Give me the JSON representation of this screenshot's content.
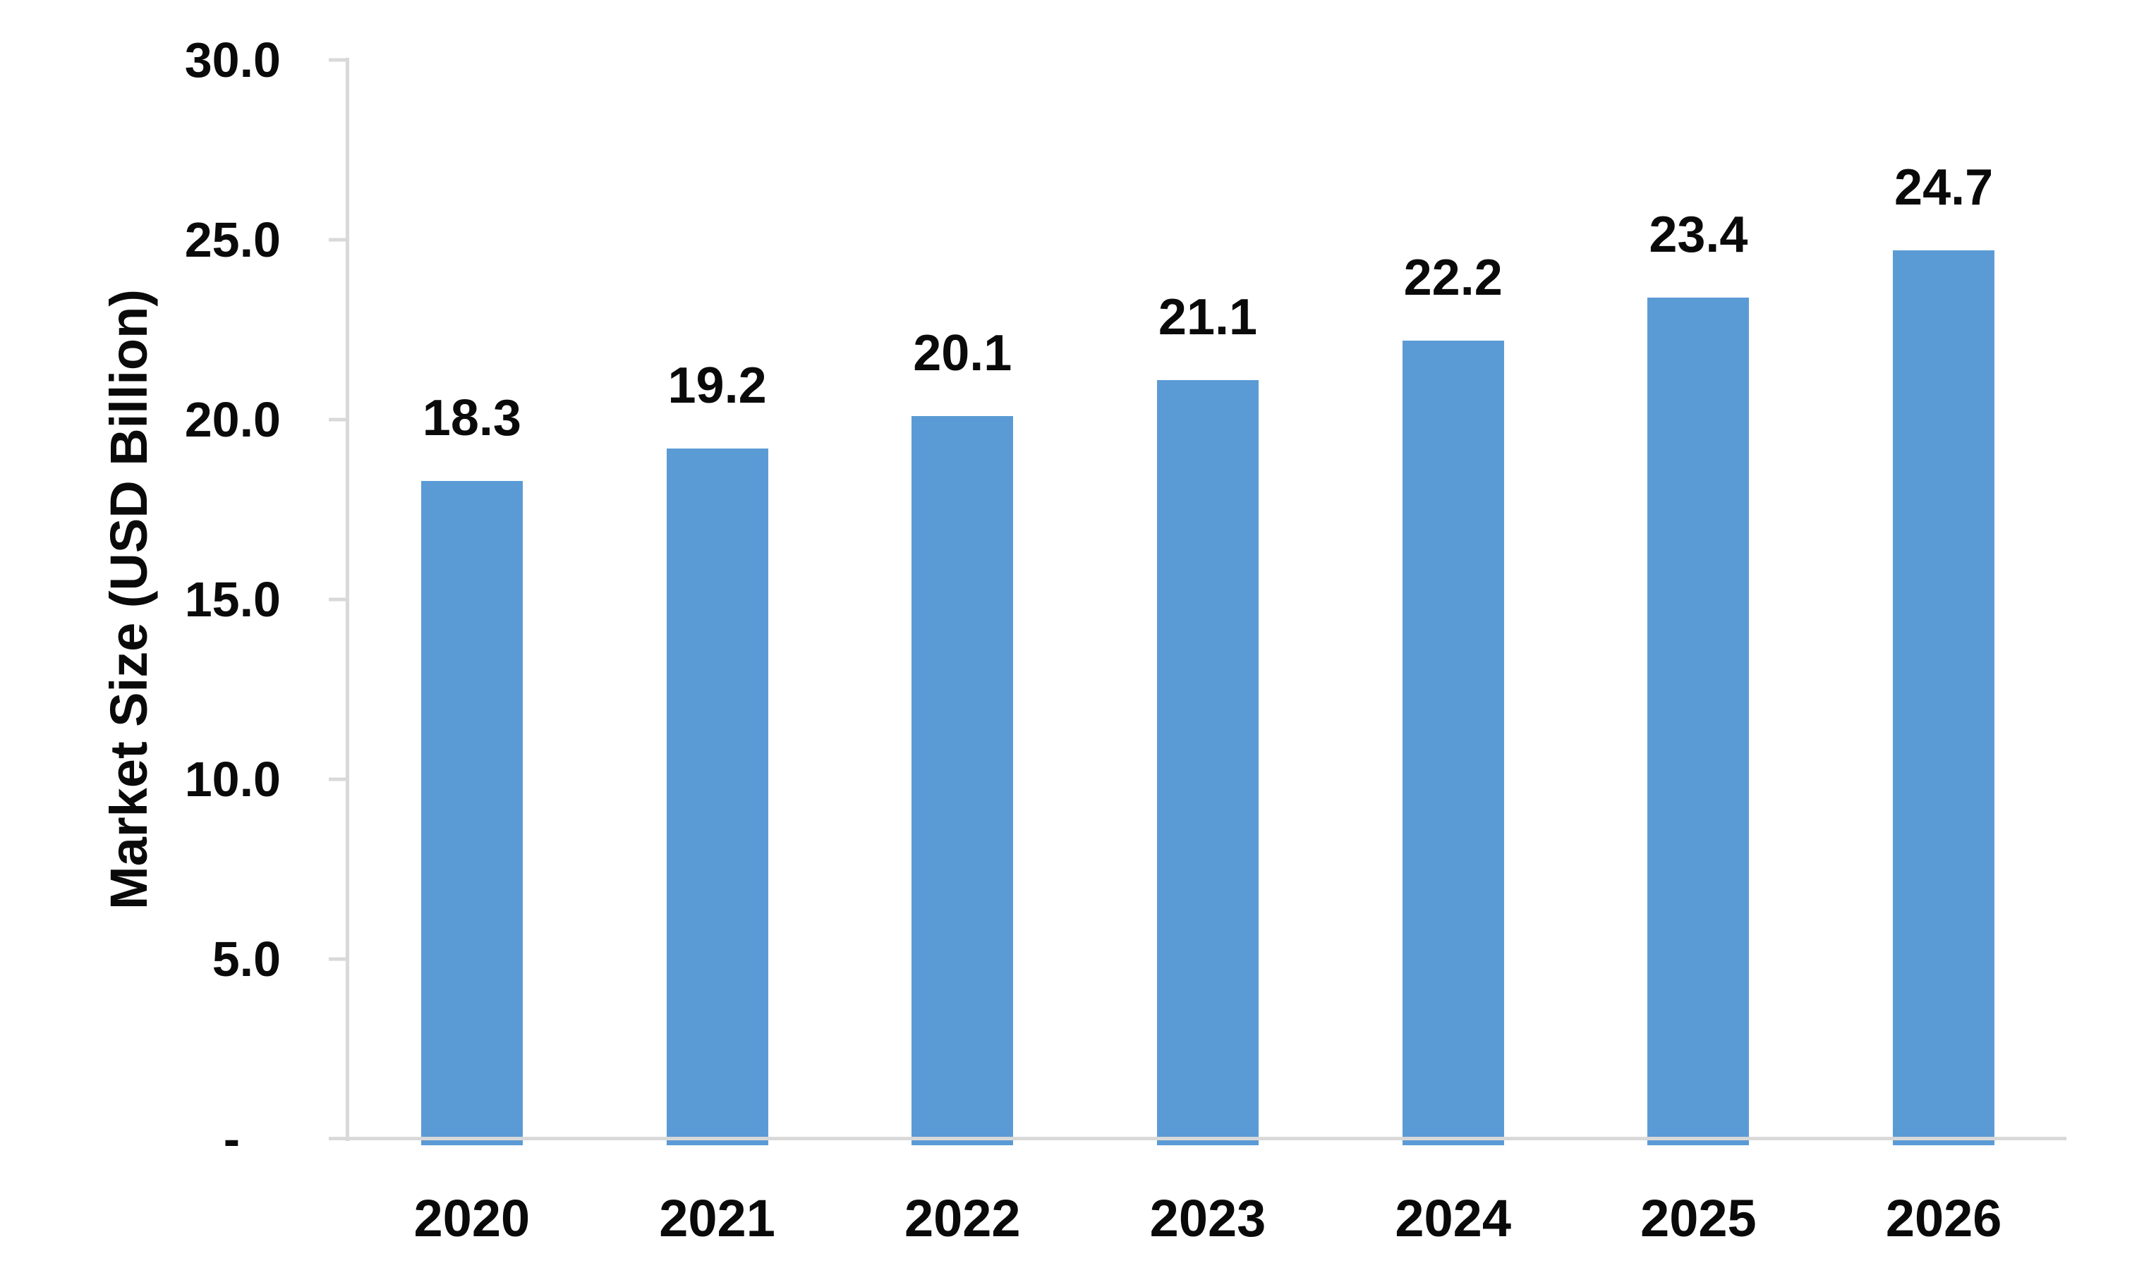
{
  "chart_data": {
    "type": "bar",
    "title": "",
    "xlabel": "",
    "ylabel": "Market Size (USD Billion)",
    "categories": [
      "2020",
      "2021",
      "2022",
      "2023",
      "2024",
      "2025",
      "2026"
    ],
    "values": [
      18.3,
      19.2,
      20.1,
      21.1,
      22.2,
      23.4,
      24.7
    ],
    "value_label_format": "one-decimal",
    "ylim": [
      0,
      30
    ],
    "yticks": [
      {
        "label": "30.0",
        "value": 30
      },
      {
        "label": "25.0",
        "value": 25
      },
      {
        "label": "20.0",
        "value": 20
      },
      {
        "label": "15.0",
        "value": 15
      },
      {
        "label": "10.0",
        "value": 10
      },
      {
        "label": "5.0",
        "value": 5
      },
      {
        "label": "-",
        "value": 0
      }
    ],
    "grid": "off",
    "legend": "none",
    "bar_color": "#5B9BD5",
    "axis_color": "#D9D9D9",
    "text_color": "#0A0A0A",
    "background_color": "#FFFFFF"
  }
}
